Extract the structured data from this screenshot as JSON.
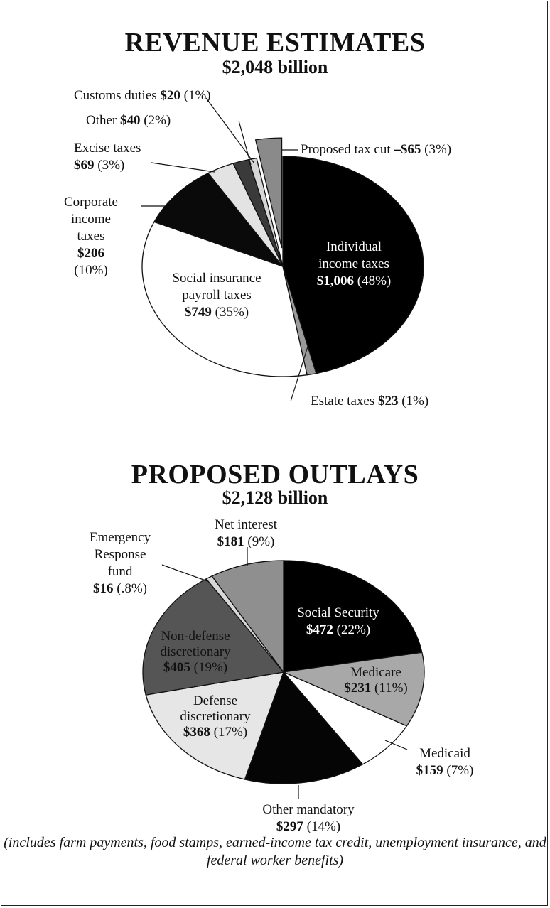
{
  "chart_data": [
    {
      "type": "pie",
      "title": "REVENUE ESTIMATES",
      "subtitle": "$2,048 billion",
      "slices": [
        {
          "label": "Individual income taxes",
          "value": 1006,
          "value_label": "$1,006",
          "percent_label": "(48%)",
          "color": "#000000"
        },
        {
          "label": "Estate taxes",
          "value": 23,
          "value_label": "$23",
          "percent_label": "(1%)",
          "color": "#9a9a9a"
        },
        {
          "label": "Social insurance payroll taxes",
          "value": 749,
          "value_label": "$749",
          "percent_label": "(35%)",
          "color": "#ffffff"
        },
        {
          "label": "Corporate income taxes",
          "value": 206,
          "value_label": "$206",
          "percent_label": "(10%)",
          "color": "#0a0a0a"
        },
        {
          "label": "Excise taxes",
          "value": 69,
          "value_label": "$69",
          "percent_label": "(3%)",
          "color": "#e3e3e3"
        },
        {
          "label": "Other",
          "value": 40,
          "value_label": "$40",
          "percent_label": "(2%)",
          "color": "#3a3a3a"
        },
        {
          "label": "Customs duties",
          "value": 20,
          "value_label": "$20",
          "percent_label": "(1%)",
          "color": "#d6d6d6"
        },
        {
          "label": "Proposed tax cut",
          "value": -65,
          "value_label": "–$65",
          "percent_label": "(3%)",
          "color": "#8a8a8a",
          "exploded": true
        }
      ]
    },
    {
      "type": "pie",
      "title": "PROPOSED OUTLAYS",
      "subtitle": "$2,128 billion",
      "slices": [
        {
          "label": "Social Security",
          "value": 472,
          "value_label": "$472",
          "percent_label": "(22%)",
          "color": "#000000"
        },
        {
          "label": "Medicare",
          "value": 231,
          "value_label": "$231",
          "percent_label": "(11%)",
          "color": "#a8a8a8"
        },
        {
          "label": "Medicaid",
          "value": 159,
          "value_label": "$159",
          "percent_label": "(7%)",
          "color": "#ffffff"
        },
        {
          "label": "Other mandatory",
          "value": 297,
          "value_label": "$297",
          "percent_label": "(14%)",
          "color": "#050505"
        },
        {
          "label": "Defense discretionary",
          "value": 368,
          "value_label": "$368",
          "percent_label": "(17%)",
          "color": "#e6e6e6"
        },
        {
          "label": "Non-defense discretionary",
          "value": 405,
          "value_label": "$405",
          "percent_label": "(19%)",
          "color": "#555555"
        },
        {
          "label": "Emergency Response fund",
          "value": 16,
          "value_label": "$16",
          "percent_label": "(.8%)",
          "color": "#d8d8d8"
        },
        {
          "label": "Net interest",
          "value": 181,
          "value_label": "$181",
          "percent_label": "(9%)",
          "color": "#8f8f8f"
        }
      ],
      "note": "(includes farm payments, food stamps, earned-income tax credit, unemployment insurance, and federal worker benefits)"
    }
  ]
}
